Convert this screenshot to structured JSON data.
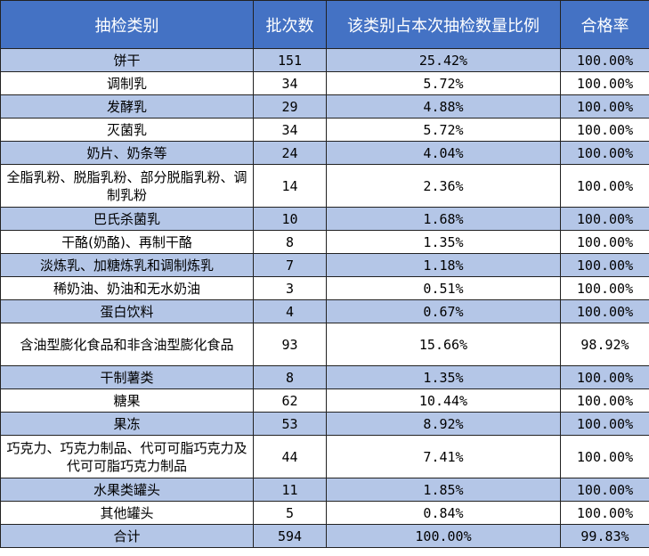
{
  "table": {
    "headers": [
      "抽检类别",
      "批次数",
      "该类别占本次抽检数量比例",
      "合格率"
    ],
    "rows": [
      {
        "category": "饼干",
        "batches": "151",
        "ratio": "25.42%",
        "pass_rate": "100.00%"
      },
      {
        "category": "调制乳",
        "batches": "34",
        "ratio": "5.72%",
        "pass_rate": "100.00%"
      },
      {
        "category": "发酵乳",
        "batches": "29",
        "ratio": "4.88%",
        "pass_rate": "100.00%"
      },
      {
        "category": "灭菌乳",
        "batches": "34",
        "ratio": "5.72%",
        "pass_rate": "100.00%"
      },
      {
        "category": "奶片、奶条等",
        "batches": "24",
        "ratio": "4.04%",
        "pass_rate": "100.00%"
      },
      {
        "category": "全脂乳粉、脱脂乳粉、部分脱脂乳粉、调制乳粉",
        "batches": "14",
        "ratio": "2.36%",
        "pass_rate": "100.00%"
      },
      {
        "category": "巴氏杀菌乳",
        "batches": "10",
        "ratio": "1.68%",
        "pass_rate": "100.00%"
      },
      {
        "category": "干酪(奶酪)、再制干酪",
        "batches": "8",
        "ratio": "1.35%",
        "pass_rate": "100.00%"
      },
      {
        "category": "淡炼乳、加糖炼乳和调制炼乳",
        "batches": "7",
        "ratio": "1.18%",
        "pass_rate": "100.00%"
      },
      {
        "category": "稀奶油、奶油和无水奶油",
        "batches": "3",
        "ratio": "0.51%",
        "pass_rate": "100.00%"
      },
      {
        "category": "蛋白饮料",
        "batches": "4",
        "ratio": "0.67%",
        "pass_rate": "100.00%"
      },
      {
        "category": "含油型膨化食品和非含油型膨化食品",
        "batches": "93",
        "ratio": "15.66%",
        "pass_rate": "98.92%"
      },
      {
        "category": "干制薯类",
        "batches": "8",
        "ratio": "1.35%",
        "pass_rate": "100.00%"
      },
      {
        "category": "糖果",
        "batches": "62",
        "ratio": "10.44%",
        "pass_rate": "100.00%"
      },
      {
        "category": "果冻",
        "batches": "53",
        "ratio": "8.92%",
        "pass_rate": "100.00%"
      },
      {
        "category": "巧克力、巧克力制品、代可可脂巧克力及代可可脂巧克力制品",
        "batches": "44",
        "ratio": "7.41%",
        "pass_rate": "100.00%"
      },
      {
        "category": "水果类罐头",
        "batches": "11",
        "ratio": "1.85%",
        "pass_rate": "100.00%"
      },
      {
        "category": "其他罐头",
        "batches": "5",
        "ratio": "0.84%",
        "pass_rate": "100.00%"
      },
      {
        "category": "合计",
        "batches": "594",
        "ratio": "100.00%",
        "pass_rate": "99.83%"
      }
    ]
  },
  "colors": {
    "header_bg": "#4472c4",
    "header_text": "#ffffff",
    "shaded_row": "#b4c6e7",
    "plain_row": "#ffffff"
  }
}
